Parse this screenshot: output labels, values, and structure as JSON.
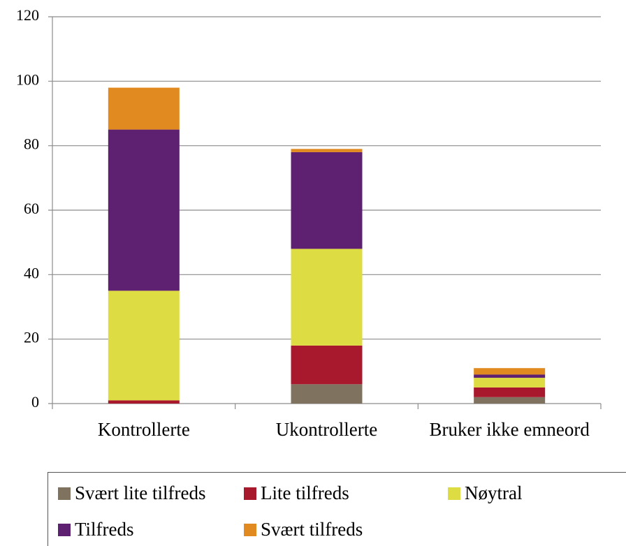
{
  "chart_data": {
    "type": "stacked_bar",
    "categories": [
      "Kontrollerte",
      "Ukontrollerte",
      "Bruker ikke emneord"
    ],
    "series": [
      {
        "name": "Svært lite tilfreds",
        "color": "#7f7360",
        "values": [
          0,
          6,
          2
        ]
      },
      {
        "name": "Lite tilfreds",
        "color": "#a8192e",
        "values": [
          1,
          12,
          3
        ]
      },
      {
        "name": "Nøytral",
        "color": "#dedc43",
        "values": [
          34,
          30,
          3
        ]
      },
      {
        "name": "Tilfreds",
        "color": "#5e2070",
        "values": [
          50,
          30,
          1
        ]
      },
      {
        "name": "Svært tilfreds",
        "color": "#e08a20",
        "values": [
          13,
          1,
          2
        ]
      }
    ],
    "ylim": [
      0,
      120
    ],
    "yticks": [
      0,
      20,
      40,
      60,
      80,
      100,
      120
    ],
    "grid": true,
    "legend": "bottom"
  }
}
